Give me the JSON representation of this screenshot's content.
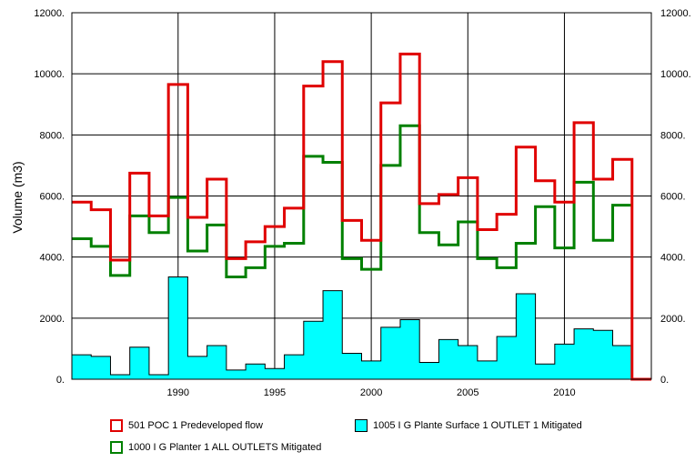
{
  "chart_data": {
    "type": "step-area",
    "ylabel": "Volume (m3)",
    "ylim": [
      0,
      12000
    ],
    "xlim": [
      1984.5,
      2014.5
    ],
    "y_ticks": [
      "12000.",
      "10000.",
      "8000.",
      "6000.",
      "4000.",
      "2000.",
      "0."
    ],
    "y_tick_values": [
      12000,
      10000,
      8000,
      6000,
      4000,
      2000,
      0
    ],
    "x_ticks": [
      "1990",
      "1995",
      "2000",
      "2005",
      "2010"
    ],
    "x_tick_values": [
      1990,
      1995,
      2000,
      2005,
      2010
    ],
    "grid": true,
    "years": [
      1985,
      1986,
      1987,
      1988,
      1989,
      1990,
      1991,
      1992,
      1993,
      1994,
      1995,
      1996,
      1997,
      1998,
      1999,
      2000,
      2001,
      2002,
      2003,
      2004,
      2005,
      2006,
      2007,
      2008,
      2009,
      2010,
      2011,
      2012,
      2013
    ],
    "series": [
      {
        "name": "501 POC 1 Predeveloped flow",
        "style": "step-line",
        "color": "#e00000",
        "values": [
          5800,
          5550,
          3900,
          6750,
          5350,
          9650,
          5300,
          6550,
          3950,
          4500,
          5000,
          5600,
          9600,
          10400,
          5200,
          4550,
          9050,
          10650,
          5750,
          6050,
          6600,
          4900,
          5400,
          7600,
          6500,
          5800,
          8400,
          6550,
          7200
        ]
      },
      {
        "name": "1000 I G Planter  1 ALL OUTLETS Mitigated",
        "style": "step-line",
        "color": "#008000",
        "values": [
          4600,
          4350,
          3400,
          5350,
          4800,
          5950,
          4200,
          5050,
          3350,
          3650,
          4350,
          4450,
          7300,
          7100,
          3950,
          3600,
          7000,
          8300,
          4800,
          4400,
          5150,
          3950,
          3650,
          4450,
          5650,
          4300,
          6450,
          4550,
          5700
        ]
      },
      {
        "name": "1005 I G Plante Surface 1 OUTLET 1 Mitigated",
        "style": "step-area",
        "color": "#00ffff",
        "values": [
          800,
          750,
          150,
          1050,
          150,
          3350,
          750,
          1100,
          300,
          500,
          350,
          800,
          1900,
          2900,
          850,
          600,
          1700,
          1950,
          550,
          1300,
          1100,
          600,
          1400,
          2800,
          500,
          1150,
          1650,
          1600,
          1100
        ]
      }
    ],
    "legend": [
      {
        "label": "501 POC 1 Predeveloped flow",
        "color": "#e00000",
        "kind": "outline"
      },
      {
        "label": "1005 I G Plante Surface 1 OUTLET 1 Mitigated",
        "color": "#00ffff",
        "kind": "fill"
      },
      {
        "label": "1000 I G Planter  1 ALL OUTLETS Mitigated",
        "color": "#008000",
        "kind": "outline"
      }
    ],
    "legend_position": "bottom"
  }
}
